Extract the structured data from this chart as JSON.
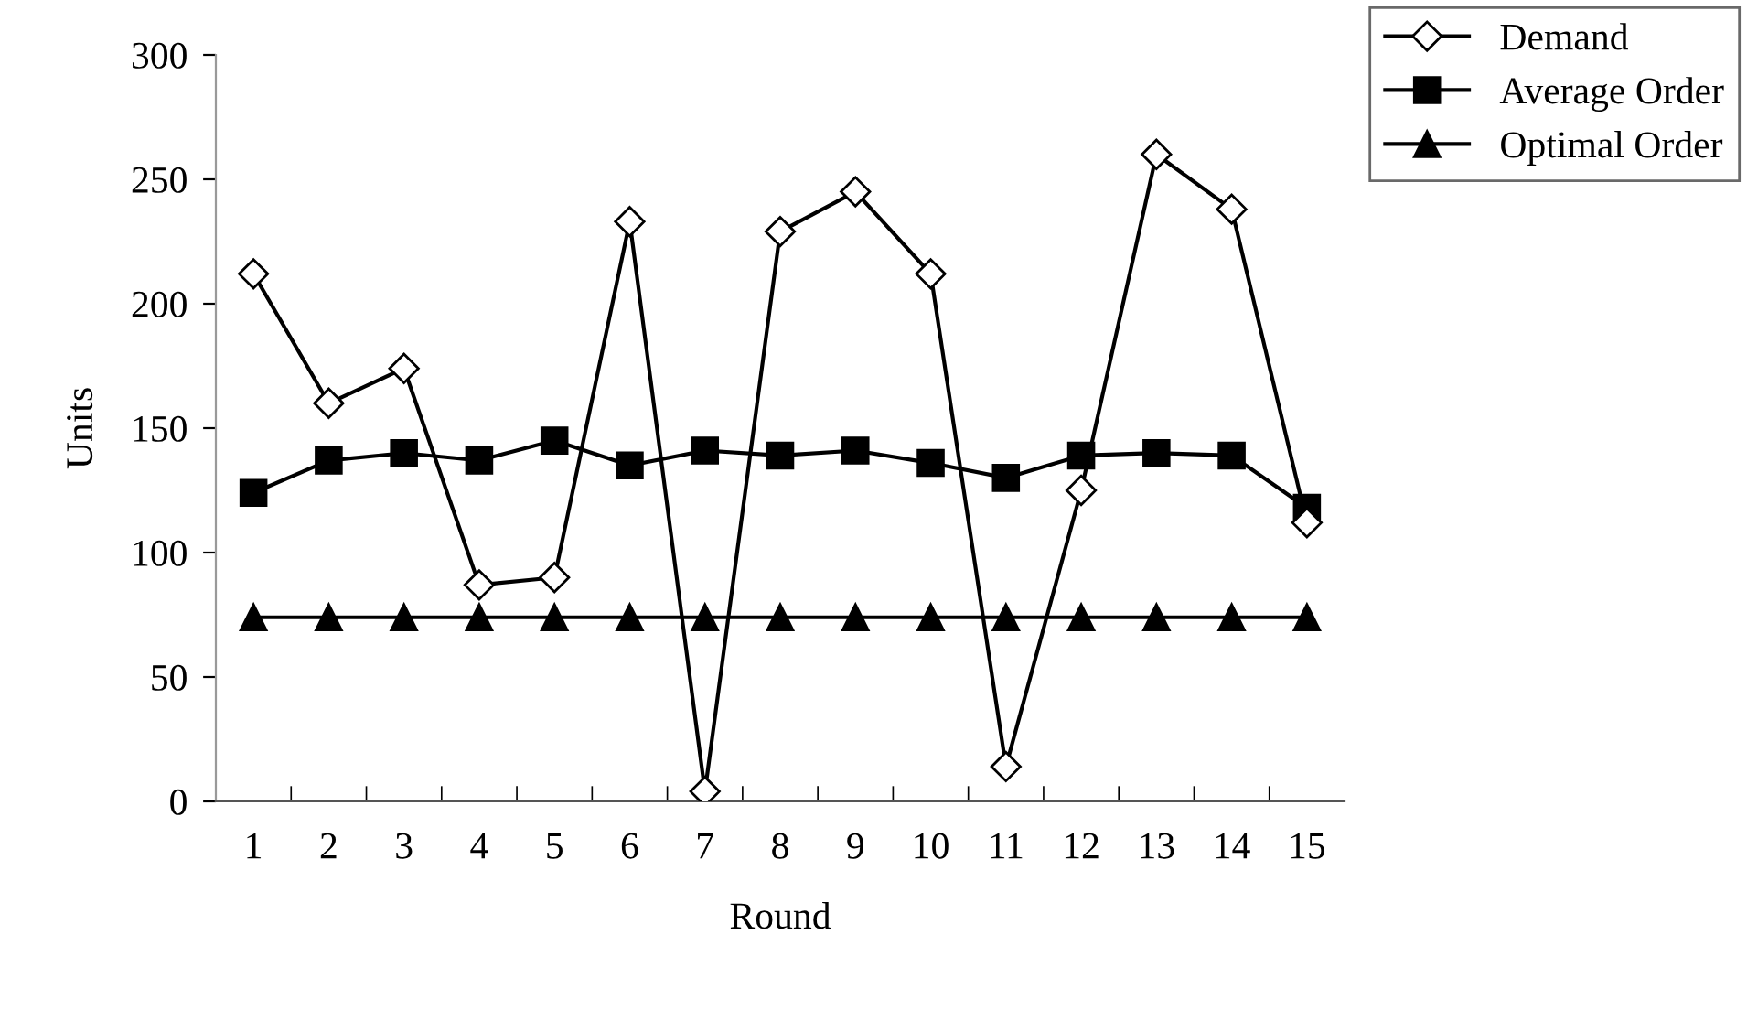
{
  "chart_data": {
    "type": "line",
    "xlabel": "Round",
    "ylabel": "Units",
    "categories": [
      "1",
      "2",
      "3",
      "4",
      "5",
      "6",
      "7",
      "8",
      "9",
      "10",
      "11",
      "12",
      "13",
      "14",
      "15"
    ],
    "series": [
      {
        "name": "Demand",
        "color": "#000000",
        "marker": "diamond",
        "values": [
          212,
          160,
          174,
          87,
          90,
          233,
          4,
          229,
          245,
          212,
          14,
          125,
          260,
          238,
          112
        ]
      },
      {
        "name": "Average Order",
        "color": "#000000",
        "marker": "square",
        "values": [
          124,
          137,
          140,
          137,
          145,
          135,
          141,
          139,
          141,
          136,
          130,
          139,
          140,
          139,
          118
        ]
      },
      {
        "name": "Optimal Order",
        "color": "#000000",
        "marker": "triangle",
        "values": [
          74,
          74,
          74,
          74,
          74,
          74,
          74,
          74,
          74,
          74,
          74,
          74,
          74,
          74,
          74
        ]
      }
    ],
    "ylim": [
      0,
      300
    ],
    "yticks": [
      0,
      50,
      100,
      150,
      200,
      250,
      300
    ],
    "grid": false,
    "legend": "top right",
    "line_style": "solid"
  }
}
